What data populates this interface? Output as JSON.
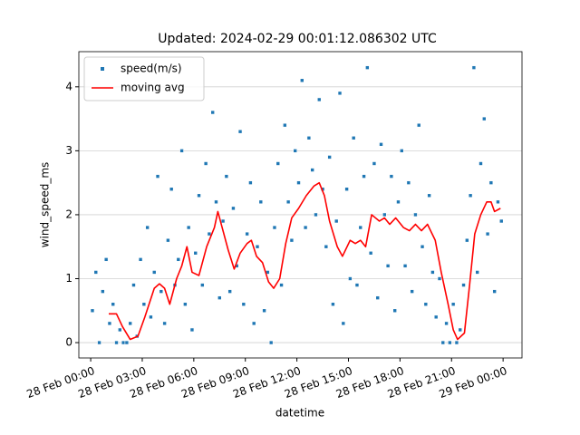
{
  "chart_data": {
    "type": "scatter",
    "title": "Updated: 2024-02-29 00:01:12.086302 UTC",
    "x_label": "datetime",
    "y_label": "wind_speed_ms",
    "xlim": [
      -0.69,
      25.1
    ],
    "ylim": [
      -0.24,
      4.55
    ],
    "xticks": [
      {
        "value": 0,
        "label": "28 Feb 00:00"
      },
      {
        "value": 3,
        "label": "28 Feb 03:00"
      },
      {
        "value": 6,
        "label": "28 Feb 06:00"
      },
      {
        "value": 9,
        "label": "28 Feb 09:00"
      },
      {
        "value": 12,
        "label": "28 Feb 12:00"
      },
      {
        "value": 15,
        "label": "28 Feb 15:00"
      },
      {
        "value": 18,
        "label": "28 Feb 18:00"
      },
      {
        "value": 21,
        "label": "28 Feb 21:00"
      },
      {
        "value": 24,
        "label": "29 Feb 00:00"
      }
    ],
    "yticks": [
      0,
      1,
      2,
      3,
      4
    ],
    "grid": "y",
    "legend": "upper left",
    "series": [
      {
        "name": "speed(m/s)",
        "type": "scatter",
        "color": "#1f77b4",
        "x": [
          0.1,
          0.3,
          0.5,
          0.7,
          0.9,
          1.1,
          1.3,
          1.5,
          1.7,
          1.9,
          2.1,
          2.3,
          2.5,
          2.7,
          2.9,
          3.1,
          3.3,
          3.5,
          3.7,
          3.9,
          4.1,
          4.3,
          4.5,
          4.7,
          4.9,
          5.1,
          5.3,
          5.5,
          5.7,
          5.9,
          6.1,
          6.3,
          6.5,
          6.7,
          6.9,
          7.1,
          7.3,
          7.5,
          7.7,
          7.9,
          8.1,
          8.3,
          8.5,
          8.7,
          8.9,
          9.1,
          9.3,
          9.5,
          9.7,
          9.9,
          10.1,
          10.3,
          10.5,
          10.7,
          10.9,
          11.1,
          11.3,
          11.5,
          11.7,
          11.9,
          12.1,
          12.3,
          12.5,
          12.7,
          12.9,
          13.1,
          13.3,
          13.5,
          13.7,
          13.9,
          14.1,
          14.3,
          14.5,
          14.7,
          14.9,
          15.1,
          15.3,
          15.5,
          15.7,
          15.9,
          16.1,
          16.3,
          16.5,
          16.7,
          16.9,
          17.1,
          17.3,
          17.5,
          17.7,
          17.9,
          18.1,
          18.3,
          18.5,
          18.7,
          18.9,
          19.1,
          19.3,
          19.5,
          19.7,
          19.9,
          20.1,
          20.3,
          20.5,
          20.7,
          20.9,
          21.1,
          21.3,
          21.5,
          21.7,
          21.9,
          22.1,
          22.3,
          22.5,
          22.7,
          22.9,
          23.1,
          23.3,
          23.5,
          23.7,
          23.9
        ],
        "values": [
          0.5,
          1.1,
          0.0,
          0.8,
          1.3,
          0.3,
          0.6,
          0.0,
          0.2,
          0.0,
          0.0,
          0.3,
          0.9,
          0.1,
          1.3,
          0.6,
          1.8,
          0.4,
          1.1,
          2.6,
          0.8,
          0.3,
          1.6,
          2.4,
          0.9,
          1.3,
          3.0,
          0.6,
          1.8,
          0.2,
          1.4,
          2.3,
          0.9,
          2.8,
          1.7,
          3.6,
          2.2,
          0.7,
          1.9,
          2.6,
          0.8,
          2.1,
          1.2,
          3.3,
          0.6,
          1.7,
          2.5,
          0.3,
          1.5,
          2.2,
          0.5,
          1.1,
          0.0,
          1.8,
          2.8,
          0.9,
          3.4,
          2.2,
          1.6,
          3.0,
          2.5,
          4.1,
          1.8,
          3.2,
          2.7,
          2.0,
          3.8,
          2.4,
          1.5,
          2.9,
          0.6,
          1.9,
          3.9,
          0.3,
          2.4,
          1.0,
          3.2,
          0.9,
          1.8,
          2.6,
          4.3,
          1.4,
          2.8,
          0.7,
          3.1,
          2.0,
          1.2,
          2.6,
          0.5,
          2.2,
          3.0,
          1.2,
          2.5,
          0.8,
          2.0,
          3.4,
          1.5,
          0.6,
          2.3,
          1.1,
          0.4,
          1.0,
          0.0,
          0.3,
          0.0,
          0.6,
          0.0,
          0.2,
          0.9,
          1.6,
          2.3,
          4.3,
          1.1,
          2.8,
          3.5,
          1.7,
          2.5,
          0.8,
          2.2,
          1.9
        ]
      },
      {
        "name": "moving avg",
        "type": "line",
        "color": "#ff0000",
        "x": [
          1.05,
          1.5,
          1.85,
          2.3,
          2.75,
          3.15,
          3.7,
          4.0,
          4.3,
          4.6,
          5.0,
          5.3,
          5.6,
          5.9,
          6.3,
          6.75,
          7.2,
          7.4,
          7.65,
          8.0,
          8.35,
          8.7,
          9.1,
          9.35,
          9.65,
          10.0,
          10.35,
          10.65,
          11.0,
          11.35,
          11.7,
          12.1,
          12.55,
          13.0,
          13.3,
          13.6,
          13.9,
          14.35,
          14.65,
          15.1,
          15.4,
          15.7,
          16.0,
          16.35,
          16.8,
          17.1,
          17.4,
          17.75,
          18.2,
          18.55,
          18.9,
          19.25,
          19.6,
          20.05,
          20.4,
          20.8,
          21.1,
          21.35,
          21.75,
          22.05,
          22.35,
          22.7,
          23.05,
          23.3,
          23.5,
          23.85
        ],
        "values": [
          0.45,
          0.45,
          0.25,
          0.05,
          0.1,
          0.4,
          0.85,
          0.92,
          0.85,
          0.6,
          1.0,
          1.2,
          1.5,
          1.1,
          1.05,
          1.5,
          1.8,
          2.05,
          1.8,
          1.45,
          1.15,
          1.4,
          1.55,
          1.6,
          1.35,
          1.25,
          0.95,
          0.85,
          1.0,
          1.55,
          1.95,
          2.1,
          2.3,
          2.45,
          2.5,
          2.3,
          1.9,
          1.5,
          1.35,
          1.6,
          1.55,
          1.6,
          1.5,
          2.0,
          1.9,
          1.95,
          1.85,
          1.95,
          1.8,
          1.75,
          1.85,
          1.75,
          1.85,
          1.6,
          1.1,
          0.6,
          0.2,
          0.05,
          0.15,
          0.9,
          1.7,
          2.0,
          2.2,
          2.2,
          2.05,
          2.1
        ]
      }
    ]
  }
}
